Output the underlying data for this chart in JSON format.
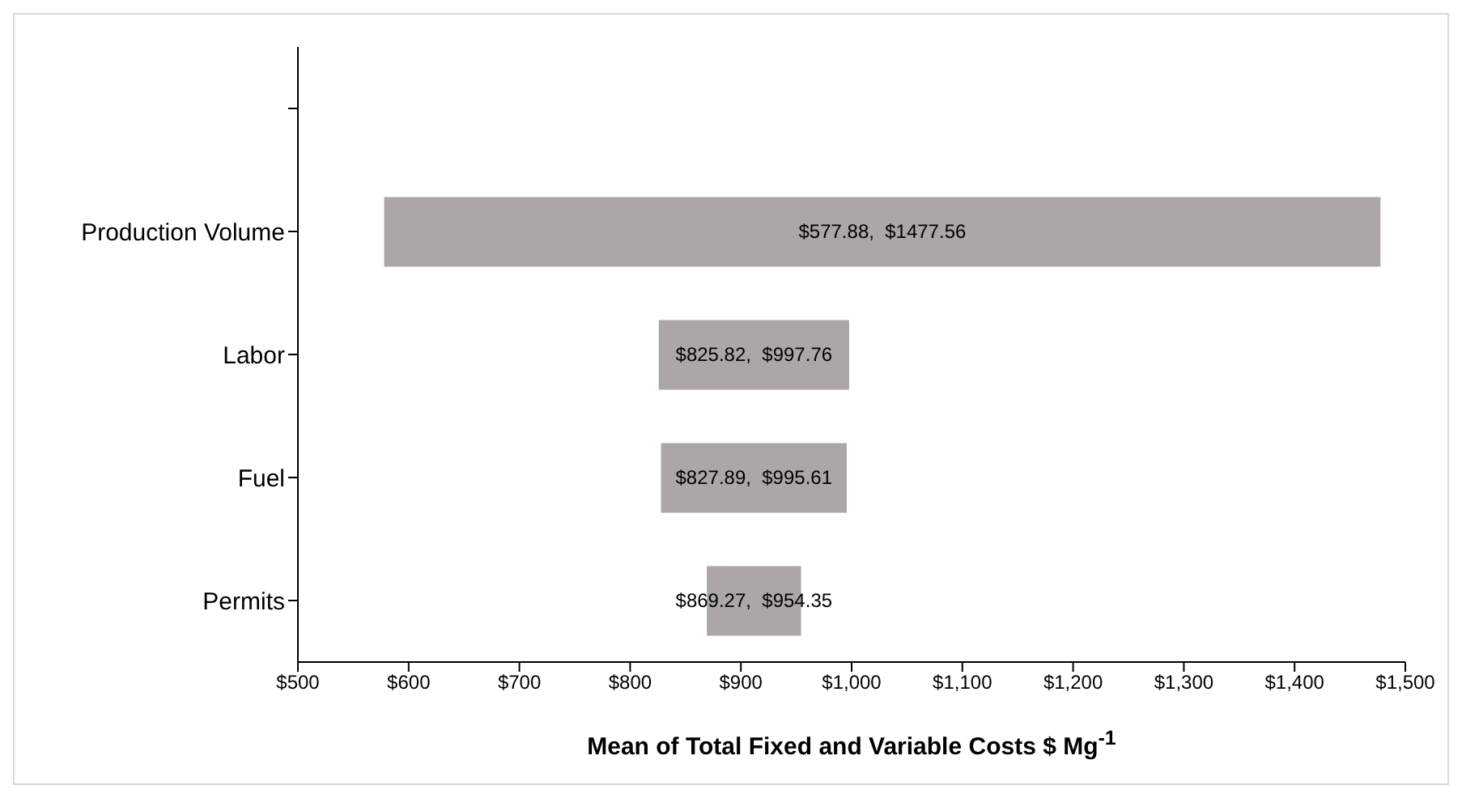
{
  "chart_data": {
    "type": "bar",
    "orientation": "horizontal",
    "xlabel": "Mean of Total Fixed and Variable Costs $ Mg$^{-1}$",
    "categories": [
      null,
      "Production Volume",
      "Labor",
      "Fuel",
      "Permits"
    ],
    "base": [
      null,
      577.88,
      825.82,
      827.89,
      869.27
    ],
    "values": [
      null,
      899.68,
      171.94,
      167.72,
      85.08
    ],
    "annotations": [
      "$577.88,  $1477.56",
      "$825.82,  $997.76",
      "$827.89,  $995.61",
      "$869.27,  $954.35"
    ],
    "color": "#aca6a6",
    "xlim": [
      500,
      1500
    ],
    "xticks": [
      {
        "value": 500,
        "label": "$500"
      },
      {
        "value": 600,
        "label": "$600"
      },
      {
        "value": 700,
        "label": "$700"
      },
      {
        "value": 800,
        "label": "$800"
      },
      {
        "value": 900,
        "label": "$900"
      },
      {
        "value": 1000,
        "label": "$1,000"
      },
      {
        "value": 1100,
        "label": "$1,100"
      },
      {
        "value": 1200,
        "label": "$1,200"
      },
      {
        "value": 1300,
        "label": "$1,300"
      },
      {
        "value": 1400,
        "label": "$1,400"
      },
      {
        "value": 1500,
        "label": "$1,500"
      }
    ]
  }
}
